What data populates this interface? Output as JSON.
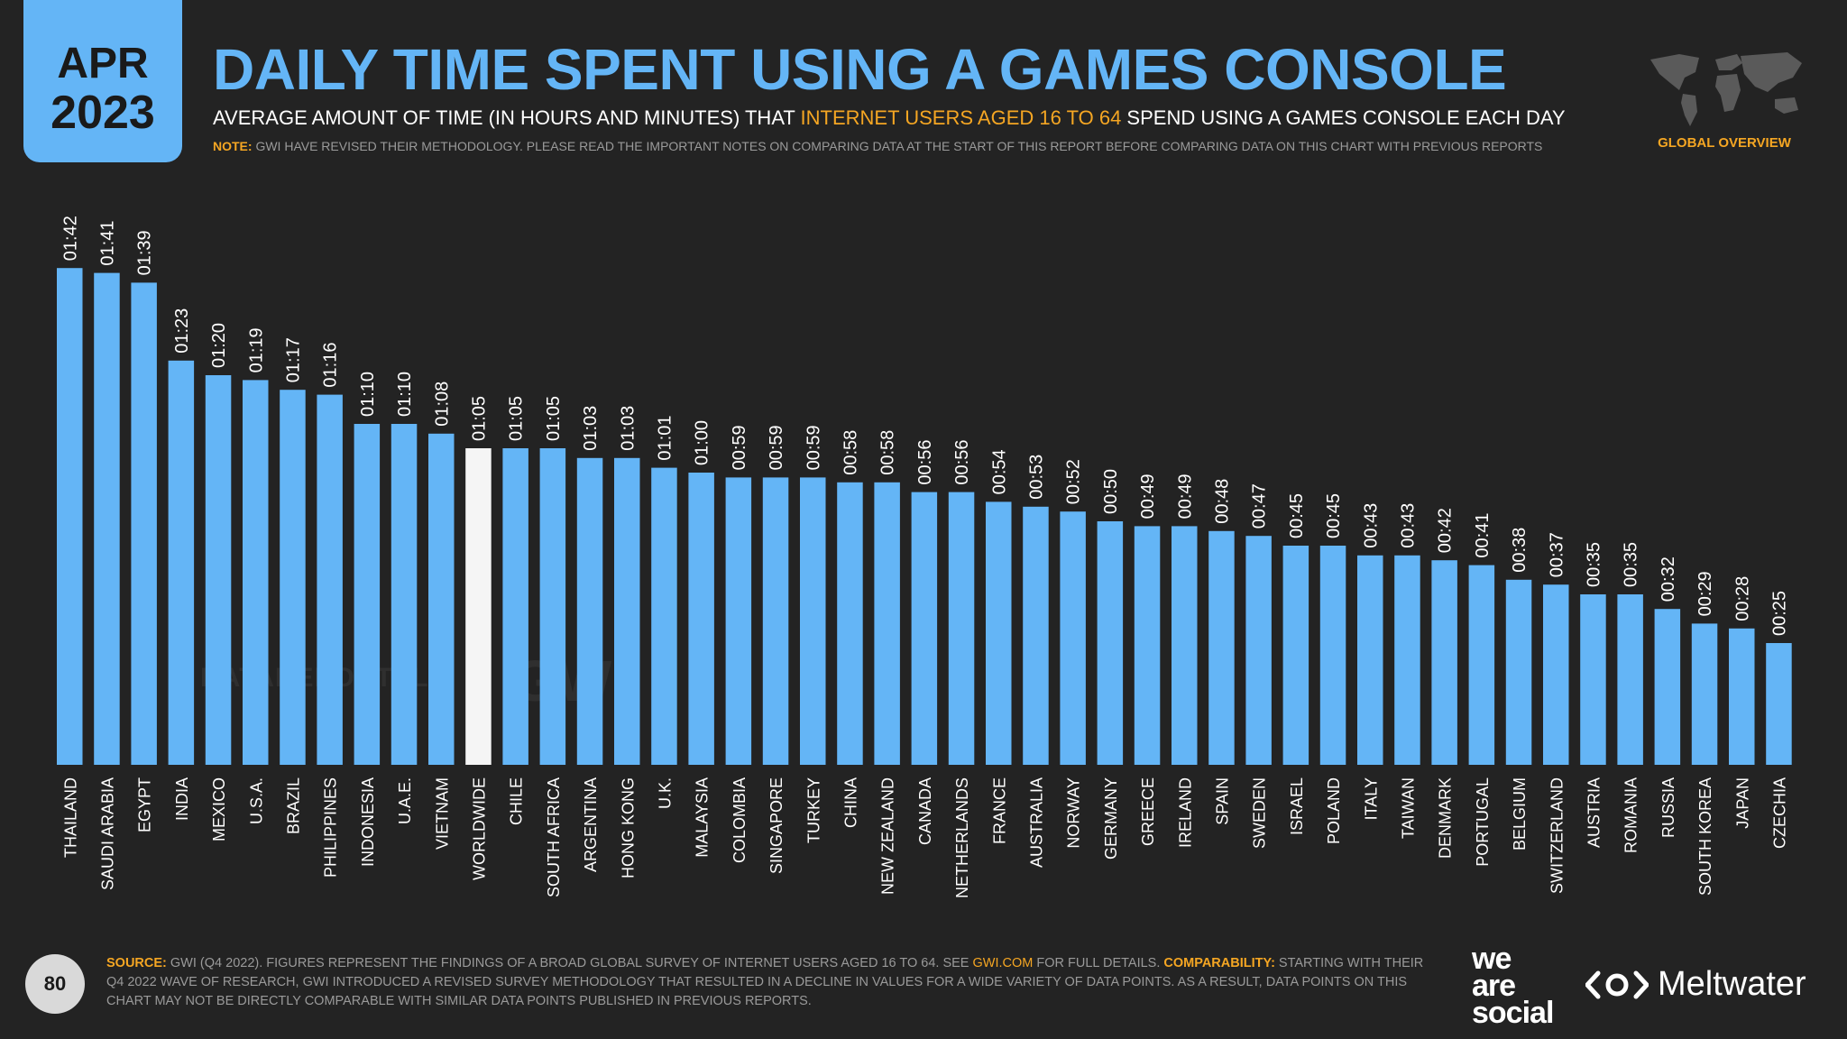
{
  "header": {
    "month": "APR",
    "year": "2023",
    "title": "DAILY TIME SPENT USING A GAMES CONSOLE",
    "subtitle_before": "AVERAGE AMOUNT OF TIME (IN HOURS AND MINUTES) THAT ",
    "subtitle_highlight": "INTERNET USERS AGED 16 TO 64",
    "subtitle_after": " SPEND USING A GAMES CONSOLE EACH DAY",
    "note_label": "NOTE:",
    "note_text": " GWI HAVE REVISED THEIR METHODOLOGY. PLEASE READ THE IMPORTANT NOTES ON COMPARING DATA AT THE START OF THIS REPORT BEFORE COMPARING DATA ON THIS CHART WITH PREVIOUS REPORTS",
    "global_label": "GLOBAL OVERVIEW"
  },
  "colors": {
    "bar": "#64b5f6",
    "highlight_bar": "#f5f5f5",
    "accent": "#f5a623",
    "background": "#232323"
  },
  "watermarks": {
    "datareportal": "DATAREPORTAL",
    "gwi": "GWI."
  },
  "footer": {
    "page_number": "80",
    "source_label": "SOURCE:",
    "source_text": " GWI (Q4 2022). FIGURES REPRESENT THE FINDINGS OF A BROAD GLOBAL SURVEY OF INTERNET USERS AGED 16 TO 64. SEE ",
    "source_link": "GWI.COM",
    "source_text2": " FOR FULL DETAILS. ",
    "comparability_label": "COMPARABILITY:",
    "comparability_text": " STARTING WITH THEIR Q4 2022 WAVE OF RESEARCH, GWI INTRODUCED A REVISED SURVEY METHODOLOGY THAT RESULTED IN A DECLINE IN VALUES FOR A WIDE VARIETY OF DATA POINTS. AS A RESULT, DATA POINTS ON THIS CHART MAY NOT BE DIRECTLY COMPARABLE WITH SIMILAR DATA POINTS PUBLISHED IN PREVIOUS REPORTS.",
    "logo_was_1": "we",
    "logo_was_2": "are",
    "logo_was_3": "social",
    "logo_meltwater": "Meltwater"
  },
  "chart_data": {
    "type": "bar",
    "title": "DAILY TIME SPENT USING A GAMES CONSOLE",
    "value_unit": "minutes",
    "ylim": [
      0,
      102
    ],
    "highlight": "WORLDWIDE",
    "categories": [
      "THAILAND",
      "SAUDI ARABIA",
      "EGYPT",
      "INDIA",
      "MEXICO",
      "U.S.A.",
      "BRAZIL",
      "PHILIPPINES",
      "INDONESIA",
      "U.A.E.",
      "VIETNAM",
      "WORLDWIDE",
      "CHILE",
      "SOUTH AFRICA",
      "ARGENTINA",
      "HONG KONG",
      "U.K.",
      "MALAYSIA",
      "COLOMBIA",
      "SINGAPORE",
      "TURKEY",
      "CHINA",
      "NEW ZEALAND",
      "CANADA",
      "NETHERLANDS",
      "FRANCE",
      "AUSTRALIA",
      "NORWAY",
      "GERMANY",
      "GREECE",
      "IRELAND",
      "SPAIN",
      "SWEDEN",
      "ISRAEL",
      "POLAND",
      "ITALY",
      "TAIWAN",
      "DENMARK",
      "PORTUGAL",
      "BELGIUM",
      "SWITZERLAND",
      "AUSTRIA",
      "ROMANIA",
      "RUSSIA",
      "SOUTH KOREA",
      "JAPAN",
      "CZECHIA"
    ],
    "values": [
      102,
      101,
      99,
      83,
      80,
      79,
      77,
      76,
      70,
      70,
      68,
      65,
      65,
      65,
      63,
      63,
      61,
      60,
      59,
      59,
      59,
      58,
      58,
      56,
      56,
      54,
      53,
      52,
      50,
      49,
      49,
      48,
      47,
      45,
      45,
      43,
      43,
      42,
      41,
      38,
      37,
      35,
      35,
      32,
      29,
      28,
      25
    ],
    "labels": [
      "01:42",
      "01:41",
      "01:39",
      "01:23",
      "01:20",
      "01:19",
      "01:17",
      "01:16",
      "01:10",
      "01:10",
      "01:08",
      "01:05",
      "01:05",
      "01:05",
      "01:03",
      "01:03",
      "01:01",
      "01:00",
      "00:59",
      "00:59",
      "00:59",
      "00:58",
      "00:58",
      "00:56",
      "00:56",
      "00:54",
      "00:53",
      "00:52",
      "00:50",
      "00:49",
      "00:49",
      "00:48",
      "00:47",
      "00:45",
      "00:45",
      "00:43",
      "00:43",
      "00:42",
      "00:41",
      "00:38",
      "00:37",
      "00:35",
      "00:35",
      "00:32",
      "00:29",
      "00:28",
      "00:25"
    ]
  }
}
